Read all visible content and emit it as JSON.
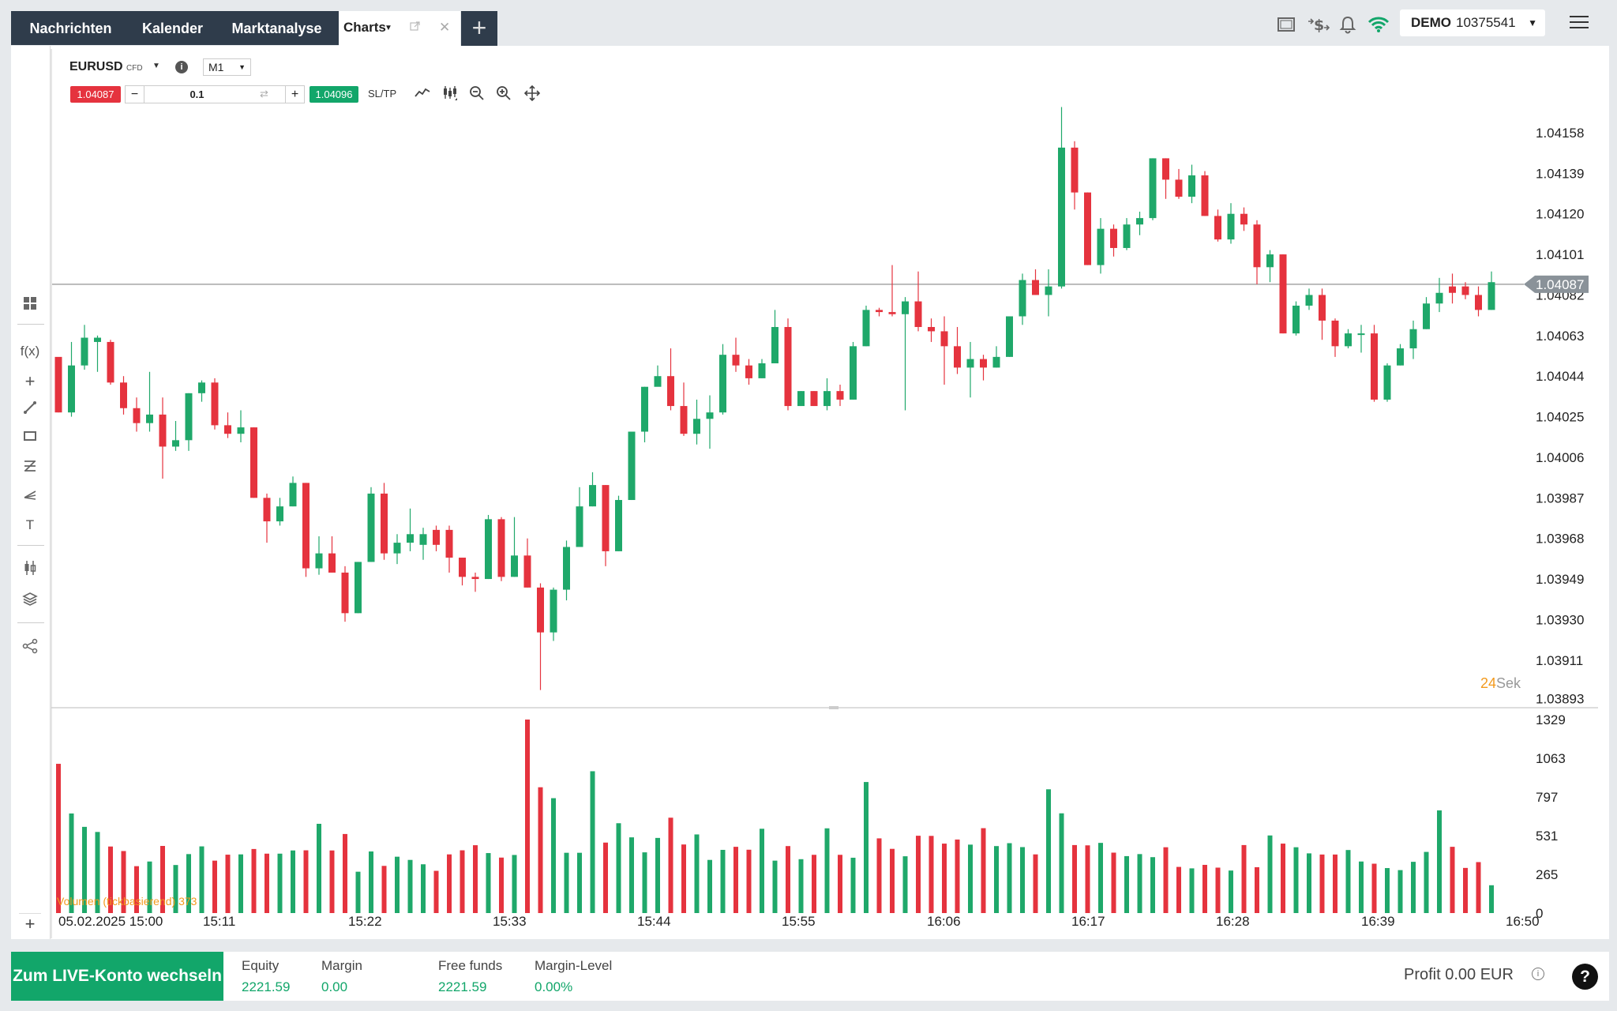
{
  "nav": {
    "tabs": [
      "Nachrichten",
      "Kalender",
      "Marktanalyse"
    ],
    "active_tab": "Charts",
    "add_tab": "+"
  },
  "account": {
    "mode": "DEMO",
    "number": "10375541"
  },
  "chart_header": {
    "symbol": "EURUSD",
    "symbol_type": "CFD",
    "timeframe": "M1",
    "sell_price": "1.04087",
    "buy_price": "1.04096",
    "quantity": "0.1",
    "sltp_label": "SL/TP"
  },
  "countdown": {
    "value": "24",
    "unit": "Sek"
  },
  "volume_legend": "Volumen (tickbasierend) 373",
  "bottom": {
    "live_button": "Zum LIVE-Konto wechseln",
    "equity_label": "Equity",
    "equity_value": "2221.59",
    "margin_label": "Margin",
    "margin_value": "0.00",
    "free_label": "Free funds",
    "free_value": "2221.59",
    "level_label": "Margin-Level",
    "level_value": "0.00%",
    "profit": "Profit 0.00 EUR"
  },
  "help_label": "?",
  "colors": {
    "up": "#1fa86a",
    "down": "#e5333e",
    "nav_bg": "#2f3c4b",
    "accent_orange": "#f39a1e"
  },
  "chart_data": {
    "type": "candlestick",
    "symbol": "EURUSD",
    "current_price": 1.04087,
    "price_ticks": [
      1.04158,
      1.04139,
      1.0412,
      1.04101,
      1.04082,
      1.04063,
      1.04044,
      1.04025,
      1.04006,
      1.03987,
      1.03968,
      1.03949,
      1.0393,
      1.03911,
      1.03893
    ],
    "price_range": [
      1.03888,
      1.04175
    ],
    "volume_ticks": [
      1329,
      1063,
      797,
      531,
      265,
      0
    ],
    "volume_range": [
      0,
      1329
    ],
    "x_labels": [
      "05.02.2025 15:00",
      "15:11",
      "15:22",
      "15:33",
      "15:44",
      "15:55",
      "16:06",
      "16:17",
      "16:28",
      "16:39",
      "16:50"
    ],
    "candles": [
      [
        1.04027,
        1.04053,
        1.04027,
        1.04045,
        1.04005
      ],
      [
        1.04027,
        1.04049,
        1.0406,
        1.04025,
        0
      ],
      [
        1.04049,
        1.04062,
        1.04068,
        1.04047,
        0
      ],
      [
        1.04062,
        1.0406,
        1.04063,
        1.04046,
        0
      ],
      [
        1.0406,
        1.04041,
        1.04061,
        1.0404,
        0
      ],
      [
        1.04041,
        1.04029,
        1.04044,
        1.04026,
        0
      ],
      [
        1.04029,
        1.04022,
        1.04034,
        1.04018,
        0
      ],
      [
        1.04022,
        1.04026,
        1.04046,
        1.04018,
        0
      ],
      [
        1.04026,
        1.04011,
        1.04034,
        1.03996,
        0
      ],
      [
        1.04011,
        1.04014,
        1.04023,
        1.04009,
        0
      ],
      [
        1.04014,
        1.04036,
        1.04036,
        1.04009,
        0
      ],
      [
        1.04036,
        1.04041,
        1.04042,
        1.04032,
        0
      ],
      [
        1.04041,
        1.04021,
        1.04043,
        1.04019,
        0
      ],
      [
        1.04021,
        1.04017,
        1.04027,
        1.04015,
        0
      ],
      [
        1.04017,
        1.0402,
        1.04028,
        1.04013,
        0
      ],
      [
        1.0402,
        1.03987,
        1.0402,
        1.03987,
        0
      ],
      [
        1.03987,
        1.03976,
        1.03989,
        1.03966,
        0
      ],
      [
        1.03976,
        1.03983,
        1.03987,
        1.03974,
        0
      ],
      [
        1.03983,
        1.03994,
        1.03997,
        1.03983,
        0
      ],
      [
        1.03994,
        1.03954,
        1.03994,
        1.0395,
        0
      ],
      [
        1.03954,
        1.03961,
        1.03969,
        1.03951,
        0
      ],
      [
        1.03961,
        1.03952,
        1.03969,
        1.03952,
        0
      ],
      [
        1.03952,
        1.03933,
        1.03955,
        1.03929,
        0
      ],
      [
        1.03933,
        1.03957,
        1.03957,
        1.03933,
        0
      ],
      [
        1.03957,
        1.03989,
        1.03992,
        1.03957,
        0
      ],
      [
        1.03989,
        1.03961,
        1.03994,
        1.03958,
        0
      ],
      [
        1.03961,
        1.03966,
        1.0397,
        1.03956,
        0
      ],
      [
        1.03966,
        1.0397,
        1.03982,
        1.03962,
        0
      ],
      [
        1.0397,
        1.03965,
        1.03973,
        1.03958,
        0
      ],
      [
        1.03965,
        1.03972,
        1.03974,
        1.03962,
        0
      ],
      [
        1.03972,
        1.03959,
        1.03974,
        1.03952,
        0
      ],
      [
        1.03959,
        1.0395,
        1.03959,
        1.03946,
        0
      ],
      [
        1.0395,
        1.03949,
        1.03952,
        1.03943,
        0
      ],
      [
        1.03949,
        1.03977,
        1.03979,
        1.03949,
        0
      ],
      [
        1.03977,
        1.0395,
        1.03978,
        1.03948,
        0
      ],
      [
        1.0395,
        1.0396,
        1.03978,
        1.0395,
        0
      ],
      [
        1.0396,
        1.03945,
        1.03968,
        1.03945,
        0
      ],
      [
        1.03945,
        1.03924,
        1.03947,
        1.03897,
        0
      ],
      [
        1.03924,
        1.03944,
        1.03945,
        1.0392,
        0
      ],
      [
        1.03944,
        1.03964,
        1.03967,
        1.03939,
        0
      ],
      [
        1.03964,
        1.03983,
        1.03992,
        1.03964,
        0
      ],
      [
        1.03983,
        1.03993,
        1.03999,
        1.03983,
        0
      ],
      [
        1.03993,
        1.03962,
        1.03993,
        1.03955,
        0
      ],
      [
        1.03962,
        1.03986,
        1.03988,
        1.03962,
        0
      ],
      [
        1.03986,
        1.04018,
        1.04018,
        1.03986,
        0
      ],
      [
        1.04018,
        1.04039,
        1.04039,
        1.04013,
        0
      ],
      [
        1.04039,
        1.04044,
        1.04049,
        1.0404,
        0
      ],
      [
        1.04044,
        1.0403,
        1.04057,
        1.04028,
        0
      ],
      [
        1.0403,
        1.04017,
        1.04041,
        1.04016,
        0
      ],
      [
        1.04017,
        1.04024,
        1.04033,
        1.04012,
        0
      ],
      [
        1.04024,
        1.04027,
        1.04035,
        1.0401,
        0
      ],
      [
        1.04027,
        1.04054,
        1.04059,
        1.04026,
        0
      ],
      [
        1.04054,
        1.04049,
        1.04062,
        1.04046,
        0
      ],
      [
        1.04049,
        1.04043,
        1.04052,
        1.0404,
        0
      ],
      [
        1.04043,
        1.0405,
        1.04052,
        1.04043,
        0
      ],
      [
        1.0405,
        1.04067,
        1.04075,
        1.0405,
        0
      ],
      [
        1.04067,
        1.0403,
        1.04071,
        1.04028,
        0
      ],
      [
        1.0403,
        1.04037,
        1.04037,
        1.0403,
        0
      ],
      [
        1.04037,
        1.0403,
        1.04037,
        1.0403,
        0
      ],
      [
        1.0403,
        1.04037,
        1.04043,
        1.04028,
        0
      ],
      [
        1.04037,
        1.04033,
        1.0404,
        1.0403,
        0
      ],
      [
        1.04033,
        1.04058,
        1.0406,
        1.04033,
        0
      ],
      [
        1.04058,
        1.04075,
        1.04077,
        1.04058,
        0
      ],
      [
        1.04075,
        1.04074,
        1.04076,
        1.04072,
        0
      ],
      [
        1.04074,
        1.04073,
        1.04096,
        1.04072,
        0
      ],
      [
        1.04073,
        1.04079,
        1.04081,
        1.04028,
        0
      ],
      [
        1.04079,
        1.04067,
        1.04093,
        1.04065,
        0
      ],
      [
        1.04067,
        1.04065,
        1.04071,
        1.0406,
        0
      ],
      [
        1.04065,
        1.04058,
        1.04072,
        1.0404,
        0
      ],
      [
        1.04058,
        1.04048,
        1.04067,
        1.04045,
        0
      ],
      [
        1.04048,
        1.04052,
        1.0406,
        1.04034,
        0
      ],
      [
        1.04052,
        1.04048,
        1.04054,
        1.04042,
        0
      ],
      [
        1.04048,
        1.04053,
        1.04058,
        1.04048,
        0
      ],
      [
        1.04053,
        1.04072,
        1.04072,
        1.04053,
        0
      ],
      [
        1.04072,
        1.04089,
        1.04092,
        1.04068,
        0
      ],
      [
        1.04089,
        1.04082,
        1.04094,
        1.04082,
        0
      ],
      [
        1.04082,
        1.04086,
        1.04094,
        1.04072,
        0
      ],
      [
        1.04086,
        1.04151,
        1.0417,
        1.04085,
        0
      ],
      [
        1.04151,
        1.0413,
        1.04154,
        1.04122,
        0
      ],
      [
        1.0413,
        1.04096,
        1.0413,
        1.04096,
        0
      ],
      [
        1.04096,
        1.04113,
        1.04118,
        1.04092,
        0
      ],
      [
        1.04113,
        1.04104,
        1.04115,
        1.041,
        0
      ],
      [
        1.04104,
        1.04115,
        1.04118,
        1.04103,
        0
      ],
      [
        1.04115,
        1.04118,
        1.04121,
        1.0411,
        0
      ],
      [
        1.04118,
        1.04146,
        1.04146,
        1.04117,
        0
      ],
      [
        1.04146,
        1.04136,
        1.04146,
        1.04127,
        0
      ],
      [
        1.04136,
        1.04128,
        1.04141,
        1.04127,
        0
      ],
      [
        1.04128,
        1.04138,
        1.04143,
        1.04125,
        0
      ],
      [
        1.04138,
        1.04119,
        1.0414,
        1.04119,
        0
      ],
      [
        1.04119,
        1.04108,
        1.04122,
        1.04107,
        0
      ],
      [
        1.04108,
        1.0412,
        1.04125,
        1.04106,
        0
      ],
      [
        1.0412,
        1.04115,
        1.04123,
        1.04112,
        0
      ],
      [
        1.04115,
        1.04095,
        1.04117,
        1.04087,
        0
      ],
      [
        1.04095,
        1.04101,
        1.04103,
        1.04088,
        0
      ],
      [
        1.04101,
        1.04064,
        1.04101,
        1.04064,
        0
      ],
      [
        1.04064,
        1.04077,
        1.04079,
        1.04063,
        0
      ],
      [
        1.04077,
        1.04082,
        1.04085,
        1.04075,
        0
      ],
      [
        1.04082,
        1.0407,
        1.04085,
        1.04061,
        0
      ],
      [
        1.0407,
        1.04058,
        1.04071,
        1.04053,
        0
      ],
      [
        1.04058,
        1.04064,
        1.04066,
        1.04057,
        0
      ],
      [
        1.04064,
        1.04064,
        1.04068,
        1.04055,
        0
      ],
      [
        1.04064,
        1.04033,
        1.04068,
        1.04032,
        0
      ],
      [
        1.04033,
        1.04049,
        1.0405,
        1.04032,
        0
      ],
      [
        1.04049,
        1.04057,
        1.04059,
        1.04049,
        0
      ],
      [
        1.04057,
        1.04066,
        1.0407,
        1.04052,
        0
      ],
      [
        1.04066,
        1.04078,
        1.04081,
        1.04066,
        0
      ],
      [
        1.04078,
        1.04083,
        1.0409,
        1.04074,
        0
      ],
      [
        1.04083,
        1.04086,
        1.04092,
        1.04078,
        0
      ],
      [
        1.04086,
        1.04082,
        1.04088,
        1.0408,
        0
      ],
      [
        1.04082,
        1.04075,
        1.04086,
        1.04072,
        0
      ],
      [
        1.04075,
        1.04088,
        1.04093,
        1.04075,
        0
      ]
    ],
    "volumes": [
      1025,
      684,
      592,
      557,
      457,
      426,
      322,
      354,
      461,
      330,
      405,
      458,
      360,
      401,
      403,
      440,
      408,
      408,
      430,
      431,
      613,
      430,
      543,
      284,
      423,
      324,
      387,
      365,
      335,
      290,
      403,
      431,
      466,
      412,
      381,
      399,
      1329,
      864,
      789,
      414,
      414,
      974,
      484,
      617,
      520,
      417,
      516,
      655,
      471,
      540,
      365,
      434,
      455,
      435,
      579,
      360,
      460,
      370,
      400,
      582,
      400,
      380,
      900,
      513,
      441,
      390,
      531,
      530,
      477,
      505,
      470,
      583,
      460,
      480,
      453,
      403,
      850,
      685,
      467,
      465,
      482,
      415,
      391,
      405,
      384,
      452,
      317,
      307,
      331,
      312,
      292,
      467,
      315,
      533,
      477,
      452,
      410,
      402,
      402,
      433,
      354,
      339,
      309,
      295,
      352,
      420,
      705,
      455,
      310,
      350,
      191
    ],
    "directions": [
      "down",
      "up",
      "up",
      "up",
      "down",
      "down",
      "down",
      "up",
      "down",
      "up",
      "up",
      "up",
      "down",
      "down",
      "up",
      "down",
      "down",
      "up",
      "up",
      "down",
      "up",
      "down",
      "down",
      "up",
      "up",
      "down",
      "up",
      "up",
      "up",
      "down",
      "down",
      "down",
      "down",
      "up",
      "down",
      "up",
      "down",
      "down",
      "up",
      "up",
      "up",
      "up",
      "down",
      "up",
      "up",
      "up",
      "up",
      "down",
      "down",
      "up",
      "up",
      "up",
      "down",
      "down",
      "up",
      "up",
      "down",
      "up",
      "down",
      "up",
      "down",
      "up",
      "up",
      "down",
      "down",
      "up",
      "down",
      "down",
      "down",
      "down",
      "up",
      "down",
      "up",
      "up",
      "up",
      "down",
      "up",
      "up",
      "down",
      "down",
      "up",
      "down",
      "up",
      "up",
      "up",
      "down",
      "down",
      "up",
      "down",
      "down",
      "up",
      "down",
      "down",
      "up",
      "down",
      "up",
      "up",
      "down",
      "down",
      "up",
      "up",
      "down",
      "up",
      "up",
      "up",
      "up",
      "up",
      "down",
      "down",
      "down",
      "up"
    ]
  }
}
